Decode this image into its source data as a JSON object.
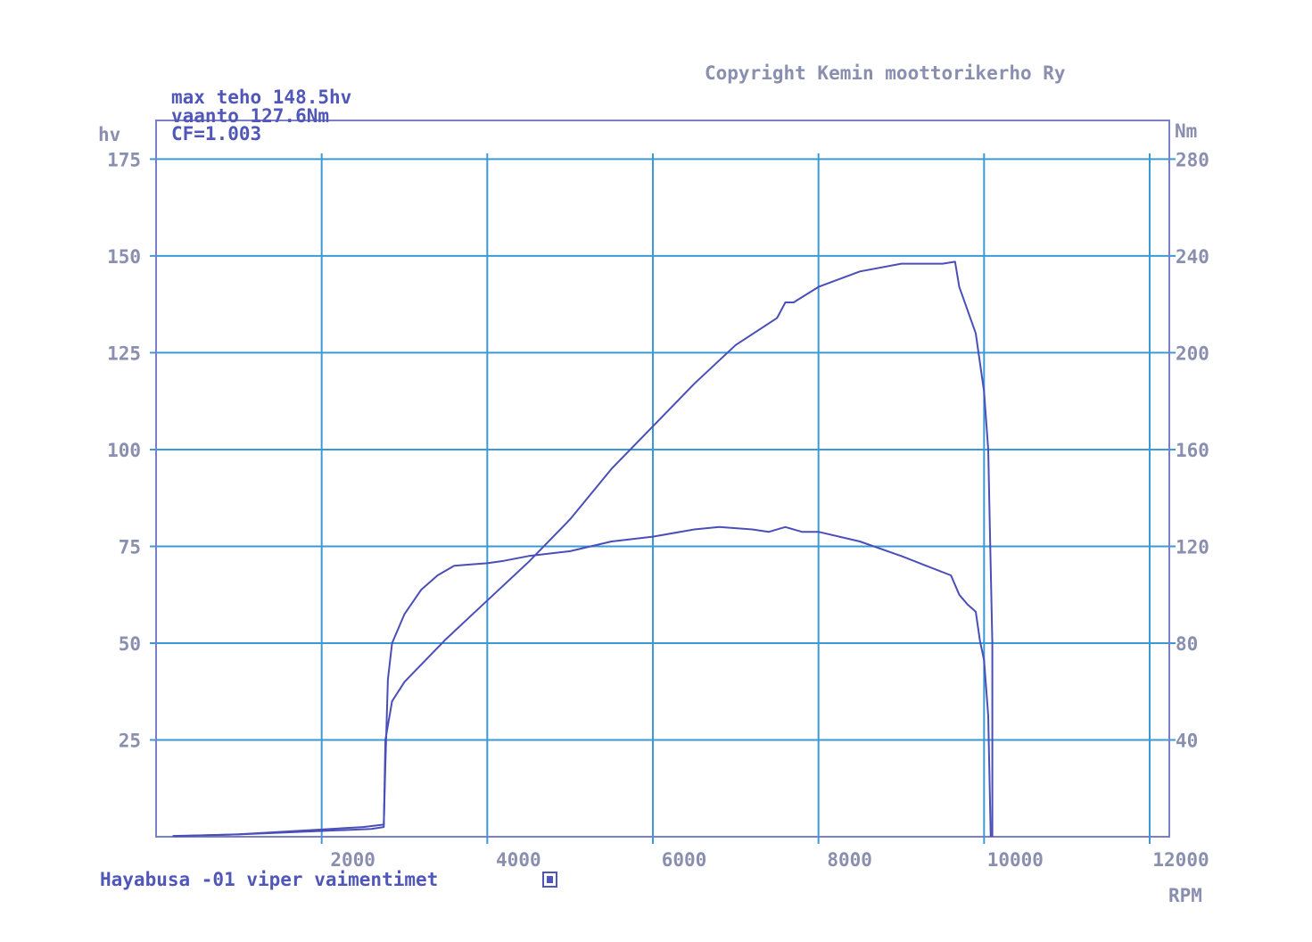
{
  "copyright": "Copyright Kemin moottorikerho Ry",
  "info": {
    "max_power": "max teho 148.5hv",
    "torque": "vaanto 127.6Nm",
    "cf": "CF=1.003"
  },
  "footer_label": "Hayabusa -01 viper vaimentimet",
  "colors": {
    "series": "#4a4fb8",
    "grid": "#3b9ad6",
    "axis_text": "#8a8fb0",
    "header_text": "#5057b8"
  },
  "chart_data": {
    "type": "line",
    "xlabel": "RPM",
    "ylabel": "hv",
    "y2label": "Nm",
    "xlim": [
      0,
      12000
    ],
    "ylim": [
      0,
      185
    ],
    "y2lim": [
      0,
      296
    ],
    "grid": true,
    "x_ticks": [
      "2000",
      "4000",
      "6000",
      "8000",
      "10000",
      "12000"
    ],
    "y_ticks": [
      "25",
      "50",
      "75",
      "100",
      "125",
      "150",
      "175"
    ],
    "y2_ticks": [
      "40",
      "80",
      "120",
      "160",
      "200",
      "240",
      "280"
    ],
    "series": [
      {
        "axis": "y2",
        "points": [
          [
            200,
            0.2
          ],
          [
            1000,
            1
          ],
          [
            2000,
            3
          ],
          [
            2500,
            4
          ],
          [
            2750,
            5
          ],
          [
            2770,
            30
          ],
          [
            2800,
            65
          ],
          [
            2850,
            80
          ],
          [
            3000,
            92
          ],
          [
            3200,
            102
          ],
          [
            3400,
            108
          ],
          [
            3600,
            112
          ],
          [
            3800,
            112.5
          ],
          [
            4000,
            113
          ],
          [
            4200,
            114
          ],
          [
            4500,
            116
          ],
          [
            5000,
            118
          ],
          [
            5500,
            122
          ],
          [
            6000,
            124
          ],
          [
            6500,
            127
          ],
          [
            6800,
            128
          ],
          [
            7200,
            127
          ],
          [
            7400,
            126
          ],
          [
            7600,
            128
          ],
          [
            7800,
            126
          ],
          [
            8000,
            126
          ],
          [
            8500,
            122
          ],
          [
            9000,
            116
          ],
          [
            9300,
            112
          ],
          [
            9600,
            108
          ],
          [
            9700,
            100
          ],
          [
            9800,
            96
          ],
          [
            9900,
            93
          ],
          [
            9950,
            81
          ],
          [
            10000,
            73
          ],
          [
            10050,
            50
          ],
          [
            10080,
            0
          ]
        ]
      },
      {
        "axis": "y",
        "points": [
          [
            200,
            0.2
          ],
          [
            1000,
            0.6
          ],
          [
            2000,
            1.5
          ],
          [
            2600,
            2
          ],
          [
            2750,
            2.5
          ],
          [
            2770,
            25
          ],
          [
            2850,
            35
          ],
          [
            3000,
            40
          ],
          [
            3500,
            51
          ],
          [
            4000,
            61
          ],
          [
            4500,
            71
          ],
          [
            5000,
            82
          ],
          [
            5500,
            95
          ],
          [
            6000,
            106
          ],
          [
            6500,
            117
          ],
          [
            7000,
            127
          ],
          [
            7500,
            134
          ],
          [
            7600,
            138
          ],
          [
            7700,
            138
          ],
          [
            8000,
            142
          ],
          [
            8500,
            146
          ],
          [
            9000,
            148
          ],
          [
            9500,
            148
          ],
          [
            9650,
            148.5
          ],
          [
            9700,
            142
          ],
          [
            9800,
            136
          ],
          [
            9900,
            130
          ],
          [
            10000,
            115
          ],
          [
            10050,
            100
          ],
          [
            10070,
            80
          ],
          [
            10100,
            50
          ],
          [
            10100,
            0
          ]
        ]
      }
    ]
  }
}
